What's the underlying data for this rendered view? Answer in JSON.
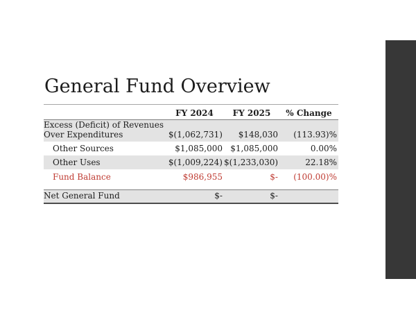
{
  "slide": {
    "title": "General Fund Overview"
  },
  "table": {
    "columns": [
      "",
      "FY 2024",
      "FY 2025",
      "% Change"
    ],
    "rows": [
      {
        "label": "Excess (Deficit) of Revenues Over Expenditures",
        "fy2024": "$(1,062,731)",
        "fy2025": "$148,030",
        "change": "(113.93)%"
      },
      {
        "label": "Other Sources",
        "fy2024": "$1,085,000",
        "fy2025": "$1,085,000",
        "change": "0.00%"
      },
      {
        "label": "Other Uses",
        "fy2024": "$(1,009,224)",
        "fy2025": "$(1,233,030)",
        "change": "22.18%"
      },
      {
        "label": "Fund Balance",
        "fy2024": "$986,955",
        "fy2025": "$-",
        "change": "(100.00)%"
      },
      {
        "label": "Net General Fund",
        "fy2024": "$-",
        "fy2025": "$-",
        "change": ""
      }
    ]
  },
  "colors": {
    "highlight_red": "#bf3b32",
    "row_shade": "#e3e3e3",
    "accent_bar": "#373737"
  }
}
